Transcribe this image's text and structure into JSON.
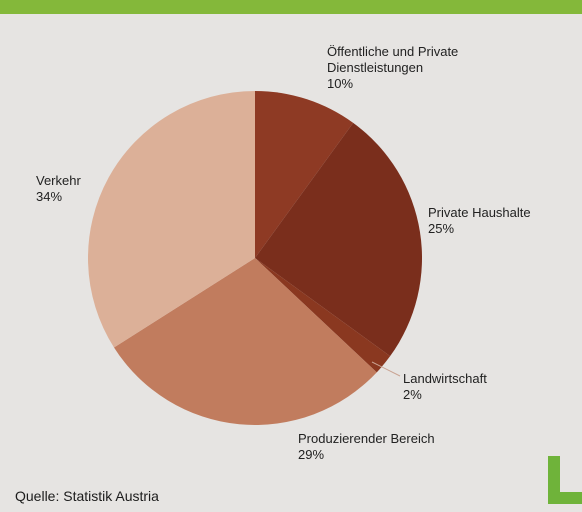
{
  "chart_data": {
    "type": "pie",
    "slices": [
      {
        "label_lines": [
          "Öffentliche und Private",
          "Dienstleistungen"
        ],
        "value": 10,
        "value_label": "10%",
        "color": "#8e3a24"
      },
      {
        "label_lines": [
          "Private Haushalte"
        ],
        "value": 25,
        "value_label": "25%",
        "color": "#7a2e1c"
      },
      {
        "label_lines": [
          "Landwirtschaft"
        ],
        "value": 2,
        "value_label": "2%",
        "color": "#8a3820"
      },
      {
        "label_lines": [
          "Produzierender Bereich"
        ],
        "value": 29,
        "value_label": "29%",
        "color": "#c17c5e"
      },
      {
        "label_lines": [
          "Verkehr"
        ],
        "value": 34,
        "value_label": "34%",
        "color": "#dcb098"
      }
    ],
    "start_angle_deg": -90,
    "direction": "clockwise"
  },
  "source": "Quelle: Statistik Austria",
  "colors": {
    "background": "#e6e4e2",
    "top_band": "#84b83a",
    "logo": "#6fb33a"
  }
}
